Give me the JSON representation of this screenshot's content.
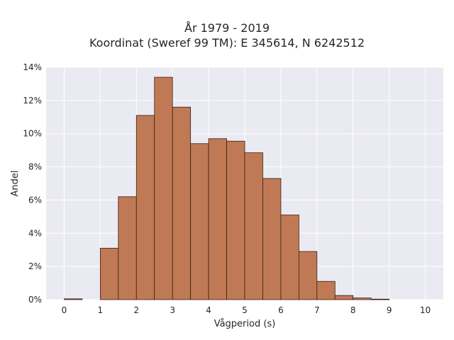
{
  "chart_data": {
    "type": "bar",
    "title_lines": [
      "År 1979 - 2019",
      "Koordinat (Sweref 99 TM): E 345614, N 6242512"
    ],
    "xlabel": "Vågperiod (s)",
    "ylabel": "Andel",
    "bin_edges": [
      0,
      0.5,
      1,
      1.5,
      2,
      2.5,
      3,
      3.5,
      4,
      4.5,
      5,
      5.5,
      6,
      6.5,
      7,
      7.5,
      8,
      8.5,
      9,
      9.5,
      10
    ],
    "values": [
      0.05,
      0,
      3.1,
      6.2,
      11.1,
      13.4,
      11.6,
      9.4,
      9.7,
      9.55,
      8.85,
      7.3,
      5.1,
      2.9,
      1.1,
      0.25,
      0.1,
      0.03,
      0,
      0
    ],
    "xlim": [
      -0.5,
      10.5
    ],
    "ylim": [
      0,
      14
    ],
    "x_ticks": [
      0,
      1,
      2,
      3,
      4,
      5,
      6,
      7,
      8,
      9,
      10
    ],
    "x_tick_labels": [
      "0",
      "1",
      "2",
      "3",
      "4",
      "5",
      "6",
      "7",
      "8",
      "9",
      "10"
    ],
    "y_ticks": [
      0,
      2,
      4,
      6,
      8,
      10,
      12,
      14
    ],
    "y_tick_labels": [
      "0%",
      "2%",
      "4%",
      "6%",
      "8%",
      "10%",
      "12%",
      "14%"
    ],
    "grid": true,
    "colors": {
      "bar_fill": "#bf7a55",
      "bar_edge": "#3a1f12",
      "plot_bg": "#eaeaf2",
      "grid": "#ffffff"
    }
  }
}
